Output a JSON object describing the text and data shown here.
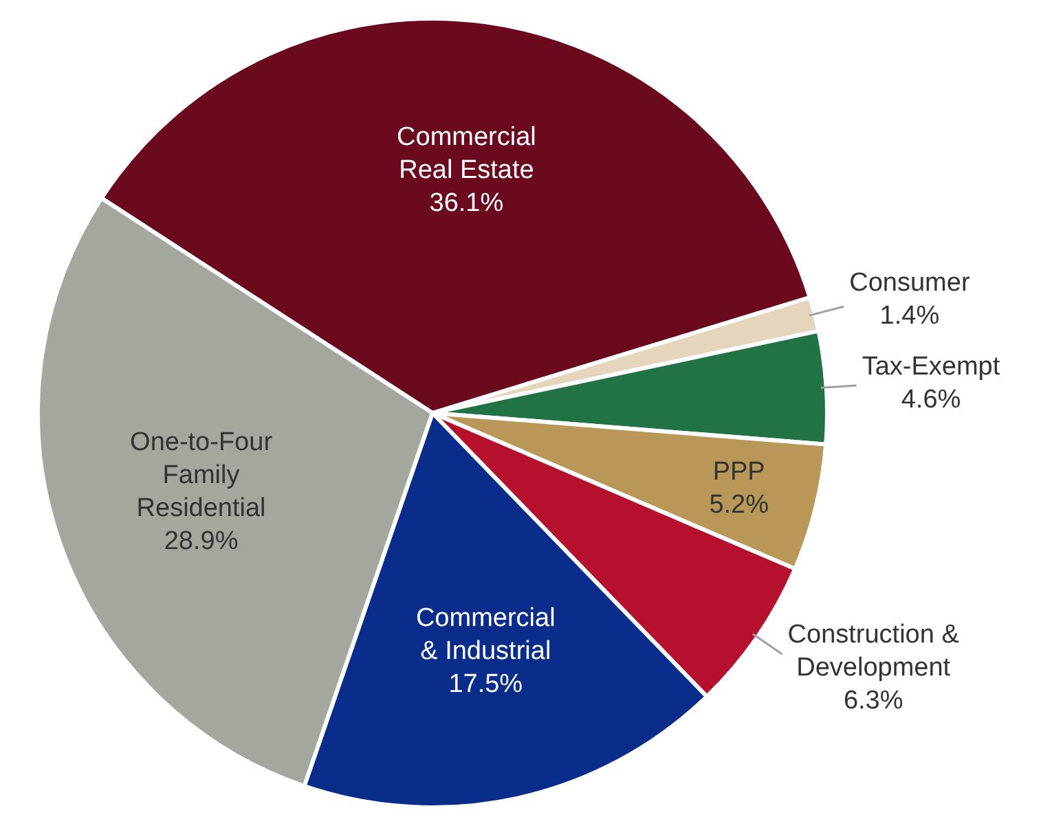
{
  "chart_data": {
    "type": "pie",
    "categories": [
      "Commercial Real Estate",
      "Consumer",
      "Tax-Exempt",
      "PPP",
      "Construction & Development",
      "Commercial & Industrial",
      "One-to-Four Family Residential"
    ],
    "values": [
      36.1,
      1.4,
      4.6,
      5.2,
      6.3,
      17.5,
      28.9
    ],
    "value_labels": [
      "36.1%",
      "1.4%",
      "4.6%",
      "5.2%",
      "6.3%",
      "17.5%",
      "28.9%"
    ],
    "colors": [
      "#6b0a1e",
      "#e6d5bd",
      "#217346",
      "#b89758",
      "#b5112e",
      "#0a2d8c",
      "#a3a79d"
    ],
    "legend": false
  }
}
